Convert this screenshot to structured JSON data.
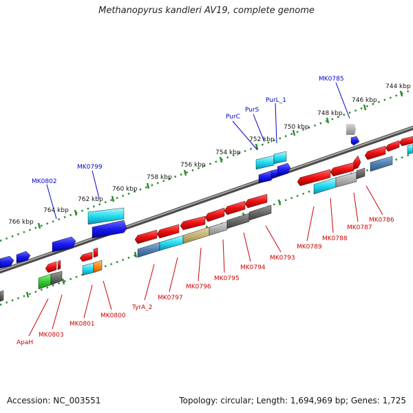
{
  "title": "Methanopyrus kandleri AV19, complete genome",
  "footer": {
    "accession": "Accession: NC_003551",
    "topology": "Topology: circular; Length: 1,694,969 bp; Genes: 1,725"
  },
  "ruler_labels": [
    "744 kbp",
    "746 kbp",
    "748 kbp",
    "750 kbp",
    "752 kbp",
    "754 kbp",
    "756 kbp",
    "758 kbp",
    "760 kbp",
    "762 kbp",
    "764 kbp",
    "766 kbp"
  ],
  "forward_gene_labels": [
    "MK0785",
    "PurL_1",
    "PurS",
    "PurC",
    "MK0799",
    "MK0802"
  ],
  "reverse_gene_labels": [
    "MK0786",
    "MK0787",
    "MK0788",
    "MK0789",
    "MK0793",
    "MK0794",
    "MK0795",
    "MK0796",
    "MK0797",
    "TyrA_2",
    "MK0800",
    "MK0801",
    "MK0803",
    "ApaH"
  ],
  "colors": {
    "forward_label": "#0000cc",
    "reverse_label": "#cc0000",
    "ruler": "#2e8b2e",
    "backbone": "#777777",
    "forward_gene": "#1a1aee",
    "reverse_gene": "#ee1111",
    "cyan_feature": "#22ccee",
    "gray_feature": "#888888"
  }
}
